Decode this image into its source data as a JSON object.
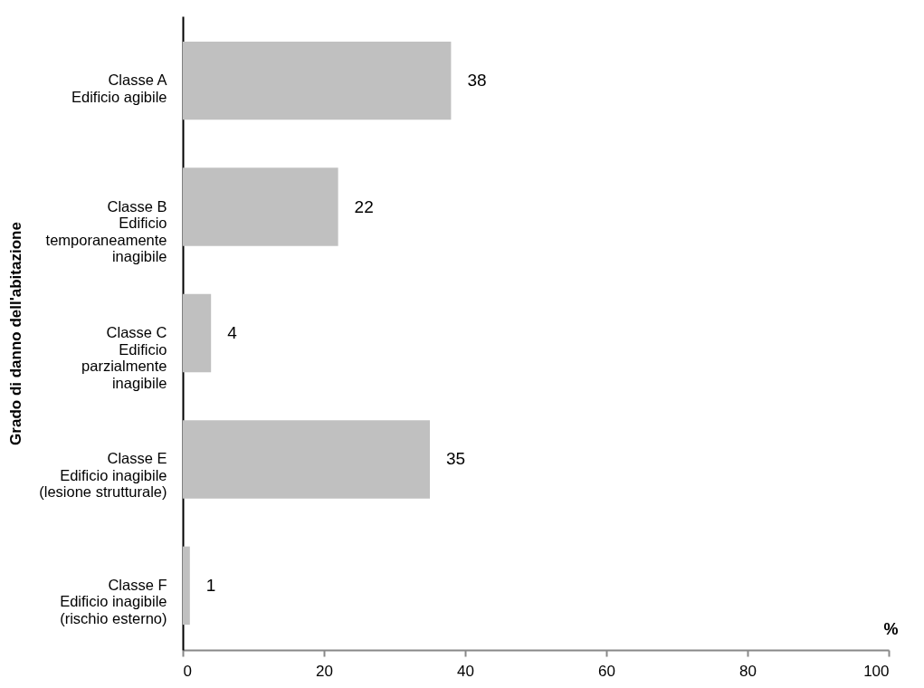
{
  "chart_data": {
    "type": "bar",
    "orientation": "horizontal",
    "ylabel": "Grado di danno dell'abitazione",
    "xlabel": "%",
    "categories": [
      "Classe A\nEdificio agibile",
      "Classe B\nEdificio\ntemporaneamente\ninagibile",
      "Classe C\nEdificio\nparzialmente\ninagibile",
      "Classe E\nEdificio inagibile\n(lesione strutturale)",
      "Classe F\nEdificio inagibile\n(rischio esterno)"
    ],
    "values": [
      38,
      22,
      4,
      35,
      1
    ],
    "color": "#c0c0c0",
    "data_labels": true,
    "xlim": [
      0,
      100
    ],
    "xticks": [
      0,
      20,
      40,
      60,
      80,
      100
    ],
    "grid": false
  }
}
